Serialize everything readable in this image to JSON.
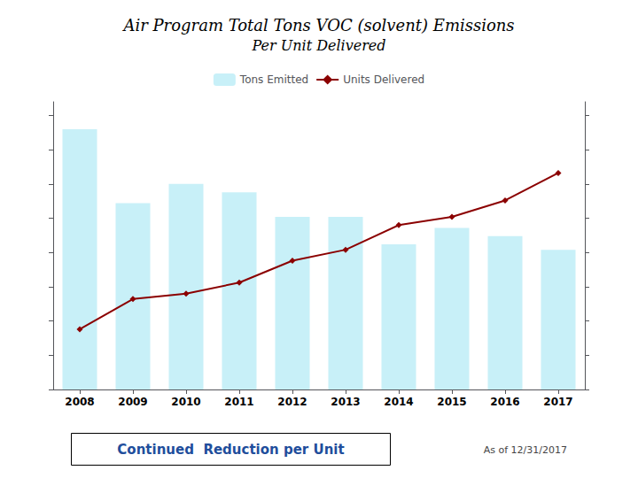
{
  "chart_data": {
    "type": "bar",
    "title": "Air Program Total Tons VOC (solvent) Emissions",
    "subtitle": "Per Unit Delivered",
    "categories": [
      "2008",
      "2009",
      "2010",
      "2011",
      "2012",
      "2013",
      "2014",
      "2015",
      "2016",
      "2017"
    ],
    "series": [
      {
        "name": "Tons Emitted",
        "type": "bar",
        "color": "#c8f0f8",
        "values": [
          95,
          68,
          75,
          72,
          63,
          63,
          53,
          59,
          56,
          51
        ]
      },
      {
        "name": "Units Delivered",
        "type": "line",
        "color": "#8b0000",
        "marker": "diamond",
        "axis": "y2",
        "values": [
          22,
          33,
          35,
          39,
          47,
          51,
          60,
          63,
          69,
          79
        ]
      }
    ],
    "ylim": [
      0,
      105
    ],
    "yticks": [
      0,
      12.5,
      25,
      37.5,
      50,
      62.5,
      75,
      87.5,
      100
    ],
    "y2lim": [
      0,
      105
    ],
    "y2ticks": [
      0,
      12.5,
      25,
      37.5,
      50,
      62.5,
      75,
      87.5,
      100
    ],
    "tick_labels": "x",
    "grid": false,
    "legend": "top",
    "annotations": [
      {
        "text": "Continued  Reduction per Unit",
        "color": "#1f4e9c"
      },
      {
        "text": "As of 12/31/2017"
      }
    ]
  }
}
